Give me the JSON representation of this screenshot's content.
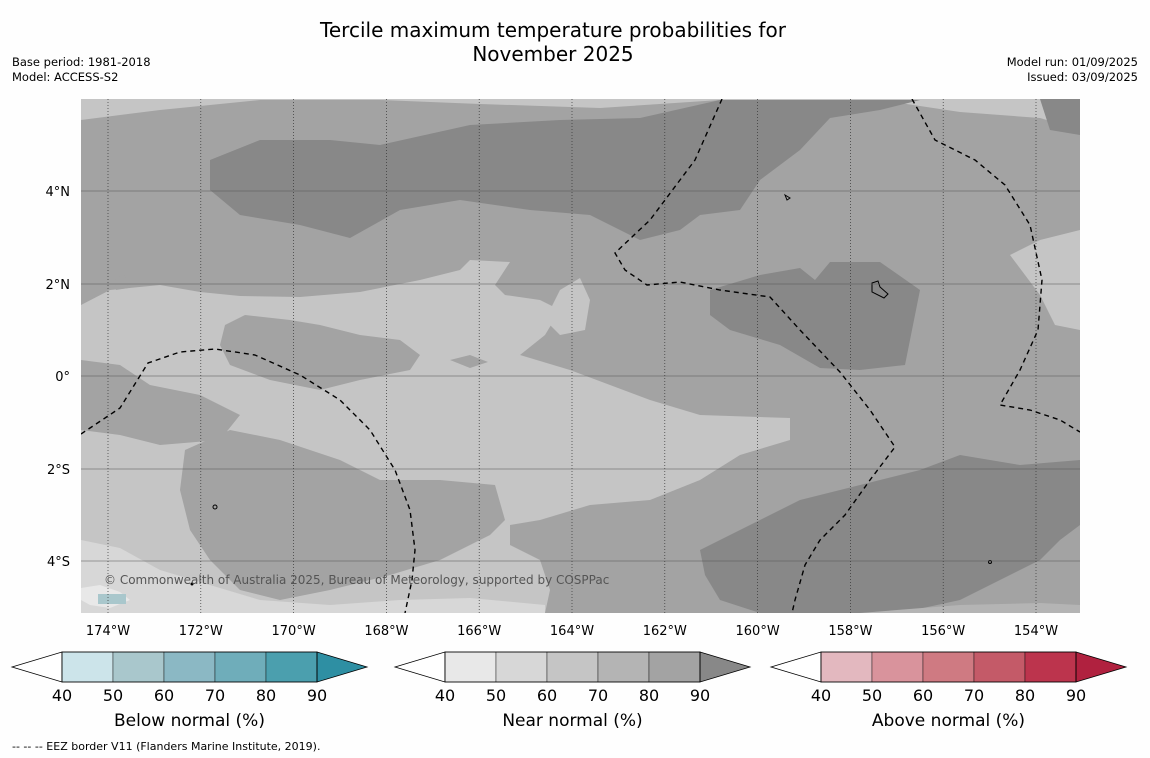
{
  "title_line1": "Tercile maximum temperature probabilities for",
  "title_line2": "November 2025",
  "base_period": "Base period: 1981-2018",
  "model": "Model: ACCESS-S2",
  "model_run": "Model run: 01/09/2025",
  "issued": "Issued: 03/09/2025",
  "copyright": "© Commonwealth of Australia 2025, Bureau of Meteorology, supported by COSPPac",
  "footnote": "--  --  -- EEZ border V11 (Flanders Marine Institute, 2019).",
  "lat_labels": [
    "4°N",
    "2°N",
    "0°",
    "2°S",
    "4°S"
  ],
  "lon_labels": [
    "174°W",
    "172°W",
    "170°W",
    "168°W",
    "166°W",
    "164°W",
    "162°W",
    "160°W",
    "158°W",
    "156°W",
    "154°W"
  ],
  "colorbars": [
    {
      "label": "Below normal (%)",
      "ticks": [
        "40",
        "50",
        "60",
        "70",
        "80",
        "90"
      ],
      "colors": [
        "#ffffff",
        "#cce4ea",
        "#a9c7cc",
        "#8bb8c4",
        "#6fadba",
        "#4b9fae",
        "#2e8fa3"
      ]
    },
    {
      "label": "Near normal (%)",
      "ticks": [
        "40",
        "50",
        "60",
        "70",
        "80",
        "90"
      ],
      "colors": [
        "#ffffff",
        "#e8e8e8",
        "#d7d7d7",
        "#c5c5c5",
        "#b4b4b4",
        "#a3a3a3",
        "#888888"
      ]
    },
    {
      "label": "Above normal (%)",
      "ticks": [
        "40",
        "50",
        "60",
        "70",
        "80",
        "90"
      ],
      "colors": [
        "#ffffff",
        "#e3b8bf",
        "#d9939c",
        "#cf7a82",
        "#c45a68",
        "#bc344d",
        "#b0213f"
      ]
    }
  ]
}
